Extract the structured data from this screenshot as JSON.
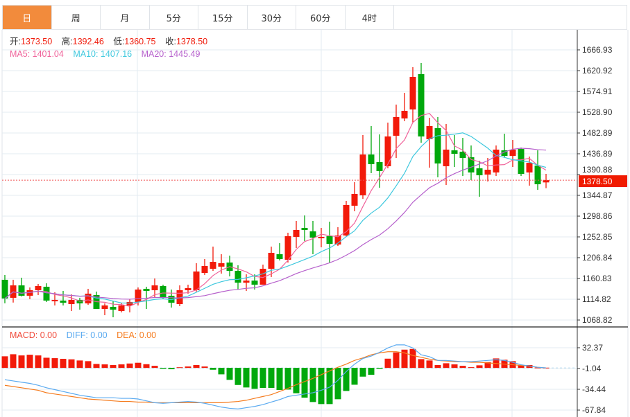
{
  "tabs": [
    {
      "label": "日",
      "active": true
    },
    {
      "label": "周",
      "active": false
    },
    {
      "label": "月",
      "active": false
    },
    {
      "label": "5分",
      "active": false
    },
    {
      "label": "15分",
      "active": false
    },
    {
      "label": "30分",
      "active": false
    },
    {
      "label": "60分",
      "active": false
    },
    {
      "label": "4时",
      "active": false
    }
  ],
  "ohlc_info": {
    "open_label": "开:",
    "open": "1373.50",
    "high_label": "高:",
    "high": "1392.46",
    "low_label": "低:",
    "low": "1360.75",
    "close_label": "收:",
    "close": "1378.50"
  },
  "ma_info": {
    "ma5": "MA5: 1401.04",
    "ma10": "MA10: 1407.16",
    "ma20": "MA20: 1445.49"
  },
  "macd_info": {
    "macd": "MACD: 0.00",
    "diff": "DIFF: 0.00",
    "dea": "DEA: 0.00"
  },
  "colors": {
    "up": "#f21a0a",
    "down": "#00a80c",
    "active_tab": "#f28b3c",
    "ma5": "#f0629a",
    "ma10": "#3ec8de",
    "ma20": "#b660cc",
    "diff": "#5aaaf0",
    "dea": "#f57c1f"
  },
  "chart_data": [
    {
      "type": "candlestick",
      "price_axis_ticks": [
        "1666.93",
        "1620.92",
        "1574.91",
        "1528.90",
        "1482.89",
        "1436.89",
        "1390.88",
        "1344.87",
        "1298.86",
        "1252.85",
        "1206.84",
        "1160.83",
        "1114.82",
        "1068.82"
      ],
      "ylim": [
        1068.82,
        1666.93
      ],
      "last_price": "1378.50",
      "candles_ohlc": [
        [
          1157.9,
          1168.6,
          1105.9,
          1116.5
        ],
        [
          1118.0,
          1157.9,
          1107.5,
          1145.6
        ],
        [
          1145.6,
          1162.5,
          1121.1,
          1122.6
        ],
        [
          1122.6,
          1141.0,
          1114.9,
          1134.8
        ],
        [
          1134.8,
          1148.6,
          1124.1,
          1144.0
        ],
        [
          1142.5,
          1150.2,
          1108.8,
          1111.9
        ],
        [
          1110.3,
          1130.2,
          1101.1,
          1113.4
        ],
        [
          1111.9,
          1133.3,
          1101.1,
          1107.2
        ],
        [
          1104.1,
          1125.6,
          1088.8,
          1113.4
        ],
        [
          1113.4,
          1118.0,
          1091.8,
          1105.7
        ],
        [
          1105.7,
          1137.9,
          1102.6,
          1127.2
        ],
        [
          1124.1,
          1131.8,
          1093.4,
          1093.4
        ],
        [
          1093.4,
          1105.7,
          1079.5,
          1101.1
        ],
        [
          1098.0,
          1110.3,
          1074.9,
          1091.8
        ],
        [
          1088.8,
          1107.2,
          1085.7,
          1101.1
        ],
        [
          1101.1,
          1114.9,
          1085.7,
          1108.8
        ],
        [
          1108.8,
          1141.0,
          1101.1,
          1136.3
        ],
        [
          1137.9,
          1142.5,
          1093.4,
          1133.3
        ],
        [
          1134.8,
          1160.8,
          1118.0,
          1145.6
        ],
        [
          1144.0,
          1147.1,
          1114.9,
          1119.5
        ],
        [
          1122.6,
          1136.3,
          1096.4,
          1107.2
        ],
        [
          1104.1,
          1145.6,
          1099.5,
          1134.8
        ],
        [
          1134.8,
          1147.1,
          1127.2,
          1139.4
        ],
        [
          1134.8,
          1194.6,
          1131.8,
          1176.3
        ],
        [
          1173.1,
          1203.8,
          1168.6,
          1188.4
        ],
        [
          1182.3,
          1231.4,
          1177.7,
          1197.6
        ],
        [
          1187.0,
          1214.5,
          1171.6,
          1194.6
        ],
        [
          1196.1,
          1211.4,
          1165.4,
          1177.7
        ],
        [
          1177.7,
          1190.0,
          1136.3,
          1151.6
        ],
        [
          1151.6,
          1170.0,
          1133.3,
          1156.2
        ],
        [
          1156.2,
          1170.0,
          1136.3,
          1147.1
        ],
        [
          1147.1,
          1191.5,
          1147.1,
          1182.3
        ],
        [
          1182.3,
          1231.4,
          1164.0,
          1217.6
        ],
        [
          1214.5,
          1239.0,
          1200.7,
          1203.8
        ],
        [
          1202.2,
          1262.1,
          1196.1,
          1254.4
        ],
        [
          1252.9,
          1288.2,
          1228.3,
          1268.2
        ],
        [
          1272.8,
          1300.4,
          1243.6,
          1268.2
        ],
        [
          1265.1,
          1288.2,
          1214.5,
          1251.3
        ],
        [
          1249.8,
          1272.8,
          1229.8,
          1252.9
        ],
        [
          1254.4,
          1286.6,
          1196.1,
          1237.5
        ],
        [
          1236.0,
          1274.3,
          1232.9,
          1256.0
        ],
        [
          1256.0,
          1332.6,
          1252.9,
          1323.4
        ],
        [
          1321.9,
          1374.0,
          1309.6,
          1348.0
        ],
        [
          1344.9,
          1478.3,
          1337.2,
          1435.3
        ],
        [
          1435.3,
          1498.2,
          1394.0,
          1413.9
        ],
        [
          1418.5,
          1479.8,
          1361.7,
          1398.5
        ],
        [
          1409.3,
          1505.9,
          1404.7,
          1475.2
        ],
        [
          1476.8,
          1545.8,
          1427.7,
          1518.2
        ],
        [
          1515.1,
          1571.8,
          1509.0,
          1532.0
        ],
        [
          1535.0,
          1628.6,
          1505.9,
          1607.1
        ],
        [
          1613.2,
          1637.8,
          1461.4,
          1475.2
        ],
        [
          1469.1,
          1516.6,
          1406.2,
          1498.2
        ],
        [
          1493.6,
          1518.2,
          1384.7,
          1415.4
        ],
        [
          1409.3,
          1502.8,
          1367.9,
          1446.1
        ],
        [
          1444.5,
          1478.3,
          1407.7,
          1436.9
        ],
        [
          1441.5,
          1472.1,
          1387.8,
          1427.7
        ],
        [
          1429.2,
          1455.3,
          1378.6,
          1395.5
        ],
        [
          1404.7,
          1421.5,
          1341.8,
          1389.3
        ],
        [
          1390.9,
          1427.7,
          1375.5,
          1401.6
        ],
        [
          1395.5,
          1455.3,
          1387.8,
          1446.1
        ],
        [
          1444.5,
          1481.3,
          1429.2,
          1432.3
        ],
        [
          1432.3,
          1467.5,
          1407.7,
          1446.1
        ],
        [
          1447.6,
          1450.7,
          1387.8,
          1392.4
        ],
        [
          1395.5,
          1430.7,
          1366.3,
          1416.9
        ],
        [
          1410.8,
          1444.5,
          1357.1,
          1369.4
        ],
        [
          1373.5,
          1392.46,
          1360.75,
          1378.5
        ]
      ],
      "moving_averages": [
        5,
        10,
        20
      ]
    },
    {
      "type": "macd",
      "axis_ticks": [
        "32.37",
        "-1.04",
        "-34.44",
        "-67.84"
      ],
      "ylim": [
        -67.84,
        32.37
      ],
      "histogram": [
        18.6,
        21.9,
        20.0,
        21.1,
        20.0,
        16.3,
        15.6,
        14.5,
        13.7,
        11.9,
        10.8,
        6.3,
        5.6,
        4.5,
        5.6,
        7.0,
        8.2,
        5.9,
        3.3,
        -1.5,
        -2.2,
        1.0,
        2.2,
        4.5,
        2.2,
        -3.0,
        -10.4,
        -19.3,
        -27.5,
        -31.5,
        -33.7,
        -32.3,
        -32.3,
        -35.6,
        -34.9,
        -40.8,
        -47.9,
        -54.9,
        -58.2,
        -58.2,
        -50.4,
        -37.1,
        -27.1,
        -14.1,
        -11.1,
        -1.5,
        14.8,
        24.8,
        29.3,
        30.4,
        14.1,
        11.9,
        4.5,
        7.4,
        5.6,
        3.3,
        1.1,
        4.1,
        9.3,
        15.2,
        13.0,
        10.8,
        4.5,
        4.5,
        0.5,
        0.3
      ],
      "diff": [
        -19,
        -21,
        -23,
        -25,
        -28,
        -32,
        -35,
        -38,
        -41,
        -44,
        -46,
        -48,
        -48,
        -48,
        -49,
        -49,
        -50,
        -53,
        -56,
        -57,
        -56,
        -55,
        -54,
        -55,
        -57,
        -60,
        -63,
        -65,
        -66,
        -64,
        -62,
        -59,
        -55,
        -51,
        -46,
        -44,
        -42,
        -40,
        -36,
        -31,
        -20,
        -6,
        6,
        15,
        19,
        25,
        32,
        37,
        37,
        32,
        21,
        18,
        12,
        12,
        11,
        10,
        10,
        11,
        12,
        13,
        12,
        9,
        5,
        3,
        1,
        0
      ],
      "dea": [
        -28,
        -30,
        -32,
        -34,
        -36,
        -40,
        -42,
        -44,
        -46,
        -48,
        -50,
        -51,
        -52,
        -53,
        -54,
        -54,
        -55,
        -55,
        -56,
        -56,
        -56,
        -56,
        -56,
        -56,
        -56,
        -56,
        -56,
        -55,
        -54,
        -52,
        -49,
        -46,
        -43,
        -38,
        -33,
        -27,
        -22,
        -17,
        -11,
        -5,
        1,
        6,
        12,
        16,
        21,
        24,
        26,
        26,
        24,
        20,
        17,
        14,
        12,
        11,
        10,
        10,
        9,
        9,
        8,
        7,
        6,
        5,
        4,
        3,
        1,
        0
      ]
    }
  ]
}
